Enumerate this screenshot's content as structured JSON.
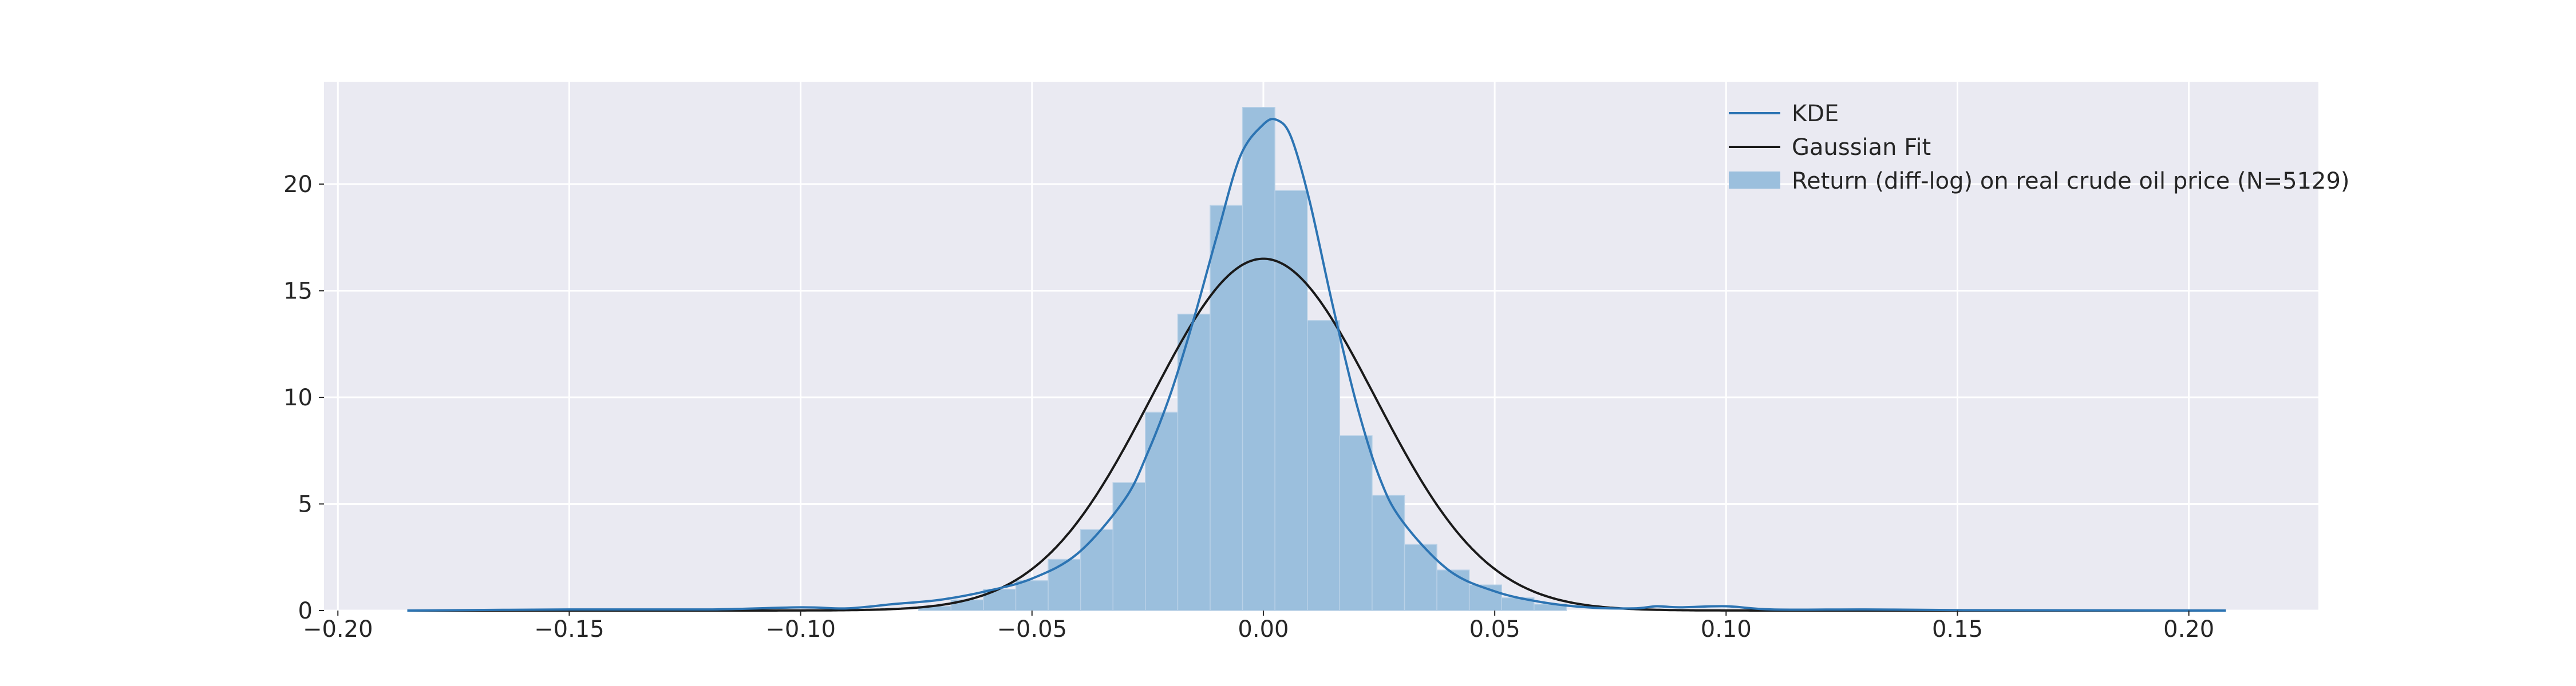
{
  "chart_data": {
    "type": "histogram+line",
    "title": "",
    "xlabel": "",
    "ylabel": "",
    "xlim": [
      -0.203,
      0.228
    ],
    "ylim": [
      0,
      24.8
    ],
    "xticks": [
      -0.2,
      -0.15,
      -0.1,
      -0.05,
      0.0,
      0.05,
      0.1,
      0.15,
      0.2
    ],
    "xtick_labels": [
      "−0.20",
      "−0.15",
      "−0.10",
      "−0.05",
      "0.00",
      "0.05",
      "0.10",
      "0.15",
      "0.20"
    ],
    "yticks": [
      0,
      5,
      10,
      15,
      20
    ],
    "ytick_labels": [
      "0",
      "5",
      "10",
      "15",
      "20"
    ],
    "grid": true,
    "legend_position": "top-right",
    "colors": {
      "background": "#EAEAF2",
      "grid": "#FFFFFF",
      "hist": "#9BBFDD",
      "kde": "#2C74B3",
      "gaussian": "#1A1A1A",
      "text": "#262626"
    },
    "legend": [
      {
        "key": "kde",
        "label": "KDE"
      },
      {
        "key": "gaussian",
        "label": "Gaussian Fit"
      },
      {
        "key": "hist",
        "label": "Return (diff-log) on real crude oil price (N=5129)"
      }
    ],
    "histogram": {
      "bin_edges": [
        -0.0745,
        -0.0675,
        -0.0605,
        -0.0535,
        -0.0465,
        -0.0395,
        -0.0325,
        -0.0255,
        -0.0185,
        -0.0115,
        -0.0045,
        0.0025,
        0.0095,
        0.0165,
        0.0235,
        0.0305,
        0.0375,
        0.0445,
        0.0515,
        0.0585,
        0.0655
      ],
      "density": [
        0.2,
        0.5,
        1.0,
        1.4,
        2.4,
        3.8,
        6.0,
        9.3,
        13.9,
        19.0,
        23.6,
        19.7,
        13.6,
        8.2,
        5.4,
        3.1,
        1.9,
        1.2,
        0.6,
        0.3
      ]
    },
    "kde": {
      "x": [
        -0.185,
        -0.15,
        -0.12,
        -0.1,
        -0.09,
        -0.08,
        -0.07,
        -0.06,
        -0.05,
        -0.04,
        -0.03,
        -0.025,
        -0.02,
        -0.015,
        -0.01,
        -0.005,
        0.0,
        0.003,
        0.006,
        0.01,
        0.015,
        0.02,
        0.025,
        0.03,
        0.04,
        0.05,
        0.06,
        0.07,
        0.08,
        0.085,
        0.09,
        0.1,
        0.11,
        0.13,
        0.15,
        0.18,
        0.208
      ],
      "y": [
        0.0,
        0.05,
        0.05,
        0.15,
        0.1,
        0.3,
        0.5,
        0.9,
        1.5,
        2.7,
        5.2,
        7.4,
        10.2,
        13.7,
        17.6,
        21.3,
        22.8,
        23.0,
        22.2,
        19.2,
        14.3,
        9.8,
        6.3,
        4.2,
        1.9,
        0.9,
        0.4,
        0.15,
        0.1,
        0.2,
        0.15,
        0.2,
        0.05,
        0.05,
        0.02,
        0.01,
        0.0
      ]
    },
    "gaussian": {
      "mean": 0.0,
      "peak_density": 16.5,
      "x_range": [
        -0.185,
        0.208
      ]
    }
  }
}
